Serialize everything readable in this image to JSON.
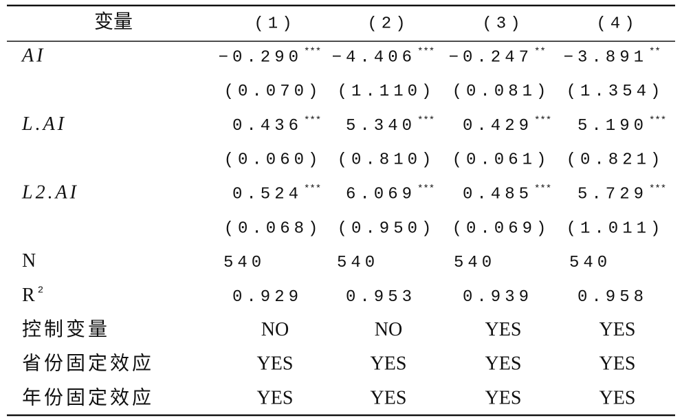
{
  "table": {
    "header": [
      "变量",
      "(1)",
      "(2)",
      "(3)",
      "(4)"
    ],
    "rows": [
      {
        "label": "AI",
        "cells": [
          {
            "value": "−0.290",
            "stars": "***"
          },
          {
            "value": "−4.406",
            "stars": "***"
          },
          {
            "value": "−0.247",
            "stars": "**"
          },
          {
            "value": "−3.891",
            "stars": "**"
          }
        ]
      },
      {
        "cells": [
          {
            "value": "(0.070)"
          },
          {
            "value": "(1.110)"
          },
          {
            "value": "(0.081)"
          },
          {
            "value": "(1.354)"
          }
        ]
      },
      {
        "label": "L.AI",
        "cells": [
          {
            "value": "0.436",
            "stars": "***"
          },
          {
            "value": "5.340",
            "stars": "***"
          },
          {
            "value": "0.429",
            "stars": "***"
          },
          {
            "value": "5.190",
            "stars": "***"
          }
        ]
      },
      {
        "cells": [
          {
            "value": "(0.060)"
          },
          {
            "value": "(0.810)"
          },
          {
            "value": "(0.061)"
          },
          {
            "value": "(0.821)"
          }
        ]
      },
      {
        "label": "L2.AI",
        "cells": [
          {
            "value": "0.524",
            "stars": "***"
          },
          {
            "value": "6.069",
            "stars": "***"
          },
          {
            "value": "0.485",
            "stars": "***"
          },
          {
            "value": "5.729",
            "stars": "***"
          }
        ]
      },
      {
        "cells": [
          {
            "value": "(0.068)"
          },
          {
            "value": "(0.950)"
          },
          {
            "value": "(0.069)"
          },
          {
            "value": "(1.011)"
          }
        ]
      },
      {
        "label": "N",
        "cells": [
          {
            "value": "540"
          },
          {
            "value": "540"
          },
          {
            "value": "540"
          },
          {
            "value": "540"
          }
        ]
      },
      {
        "label": "R",
        "label_sup": "2",
        "cells": [
          {
            "value": "0.929"
          },
          {
            "value": "0.953"
          },
          {
            "value": "0.939"
          },
          {
            "value": "0.958"
          }
        ]
      },
      {
        "label": "控制变量",
        "cells": [
          {
            "value": "NO"
          },
          {
            "value": "NO"
          },
          {
            "value": "YES"
          },
          {
            "value": "YES"
          }
        ]
      },
      {
        "label": "省份固定效应",
        "cells": [
          {
            "value": "YES"
          },
          {
            "value": "YES"
          },
          {
            "value": "YES"
          },
          {
            "value": "YES"
          }
        ]
      },
      {
        "label": "年份固定效应",
        "cells": [
          {
            "value": "YES"
          },
          {
            "value": "YES"
          },
          {
            "value": "YES"
          },
          {
            "value": "YES"
          }
        ]
      }
    ]
  }
}
